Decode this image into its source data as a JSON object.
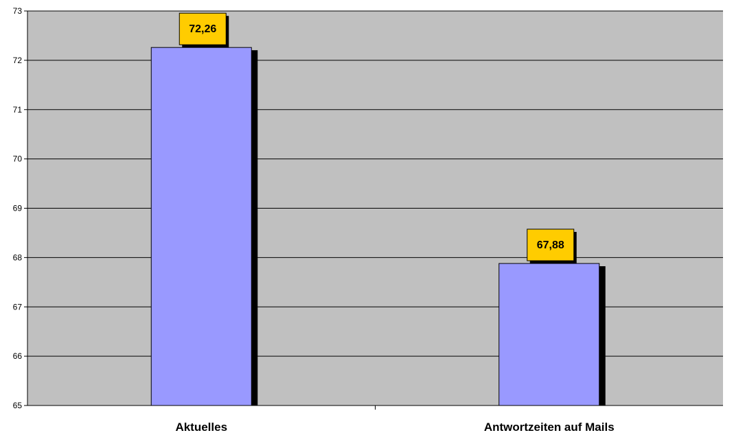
{
  "chart_data": {
    "type": "bar",
    "categories": [
      "Aktuelles",
      "Antwortzeiten auf Mails"
    ],
    "values": [
      72.26,
      67.88
    ],
    "data_labels": [
      "72,26",
      "67,88"
    ],
    "ylim": [
      65,
      73
    ],
    "yticks": [
      65,
      66,
      67,
      68,
      69,
      70,
      71,
      72,
      73
    ],
    "grid": true,
    "legend": "none",
    "colors": {
      "bar": "#9999ff",
      "bar_shadow": "#000000",
      "plot_background": "#c0c0c0",
      "label_box": "#ffcc00",
      "gridline": "#000000"
    }
  }
}
